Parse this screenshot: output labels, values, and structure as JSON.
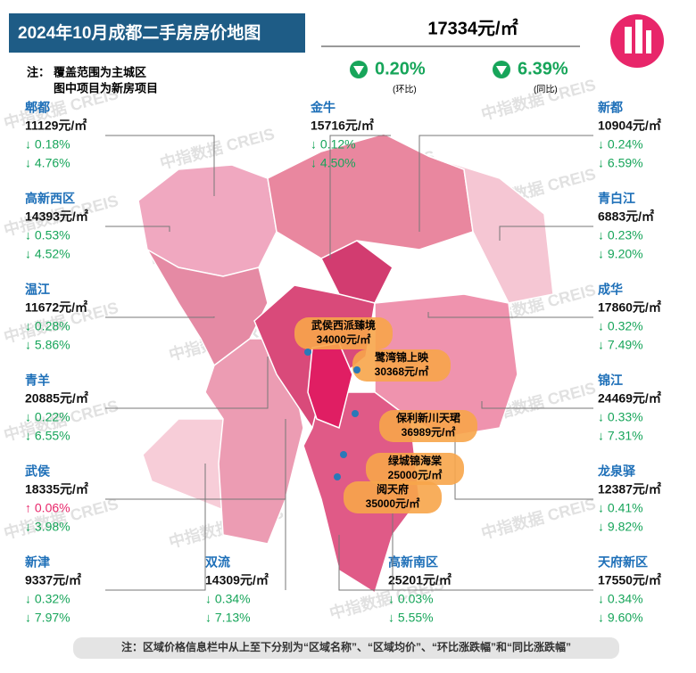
{
  "header": {
    "title": "2024年10月成都二手房房价地图",
    "note_label": "注：",
    "note_lines": [
      "覆盖范围为主城区",
      "图中项目为新房项目"
    ]
  },
  "summary": {
    "price": "17334元/㎡",
    "mom": "0.20%",
    "mom_label": "(环比)",
    "yoy": "6.39%",
    "yoy_label": "(同比)"
  },
  "districts": [
    {
      "name": "郫都",
      "price": "11129元/㎡",
      "mom": "↓ 0.18%",
      "yoy": "↓ 4.76%"
    },
    {
      "name": "高新西区",
      "price": "14393元/㎡",
      "mom": "↓ 0.53%",
      "yoy": "↓ 4.52%"
    },
    {
      "name": "温江",
      "price": "11672元/㎡",
      "mom": "↓ 0.28%",
      "yoy": "↓ 5.86%"
    },
    {
      "name": "青羊",
      "price": "20885元/㎡",
      "mom": "↓ 0.22%",
      "yoy": "↓ 6.55%"
    },
    {
      "name": "武侯",
      "price": "18335元/㎡",
      "mom": "↑ 0.06%",
      "yoy": "↓ 3.98%"
    },
    {
      "name": "新津",
      "price": "9337元/㎡",
      "mom": "↓ 0.32%",
      "yoy": "↓ 7.97%"
    },
    {
      "name": "金牛",
      "price": "15716元/㎡",
      "mom": "↓ 0.12%",
      "yoy": "↓ 4.50%"
    },
    {
      "name": "双流",
      "price": "14309元/㎡",
      "mom": "↓ 0.34%",
      "yoy": "↓ 7.13%"
    },
    {
      "name": "高新南区",
      "price": "25201元/㎡",
      "mom": "↓ 0.03%",
      "yoy": "↓ 5.55%"
    },
    {
      "name": "新都",
      "price": "10904元/㎡",
      "mom": "↓ 0.24%",
      "yoy": "↓ 6.59%"
    },
    {
      "name": "青白江",
      "price": "6883元/㎡",
      "mom": "↓ 0.23%",
      "yoy": "↓ 9.20%"
    },
    {
      "name": "成华",
      "price": "17860元/㎡",
      "mom": "↓ 0.32%",
      "yoy": "↓ 7.49%"
    },
    {
      "name": "锦江",
      "price": "24469元/㎡",
      "mom": "↓ 0.33%",
      "yoy": "↓ 7.31%"
    },
    {
      "name": "龙泉驿",
      "price": "12387元/㎡",
      "mom": "↓ 0.41%",
      "yoy": "↓ 9.82%"
    },
    {
      "name": "天府新区",
      "price": "17550元/㎡",
      "mom": "↓ 0.34%",
      "yoy": "↓ 9.60%"
    }
  ],
  "projects": [
    {
      "name": "武侯西派臻境",
      "price": "34000元/㎡"
    },
    {
      "name": "鹭湾锦上映",
      "price": "30368元/㎡"
    },
    {
      "name": "保利新川天珺",
      "price": "36989元/㎡"
    },
    {
      "name": "绿城锦海棠",
      "price": "25000元/㎡"
    },
    {
      "name": "阅天府",
      "price": "35000元/㎡"
    }
  ],
  "footer": "注：区域价格信息栏中从上至下分别为“区域名称”、“区域均价”、“环比涨跌幅”和“同比涨跌幅”",
  "watermark": "中指数据 CREIS"
}
